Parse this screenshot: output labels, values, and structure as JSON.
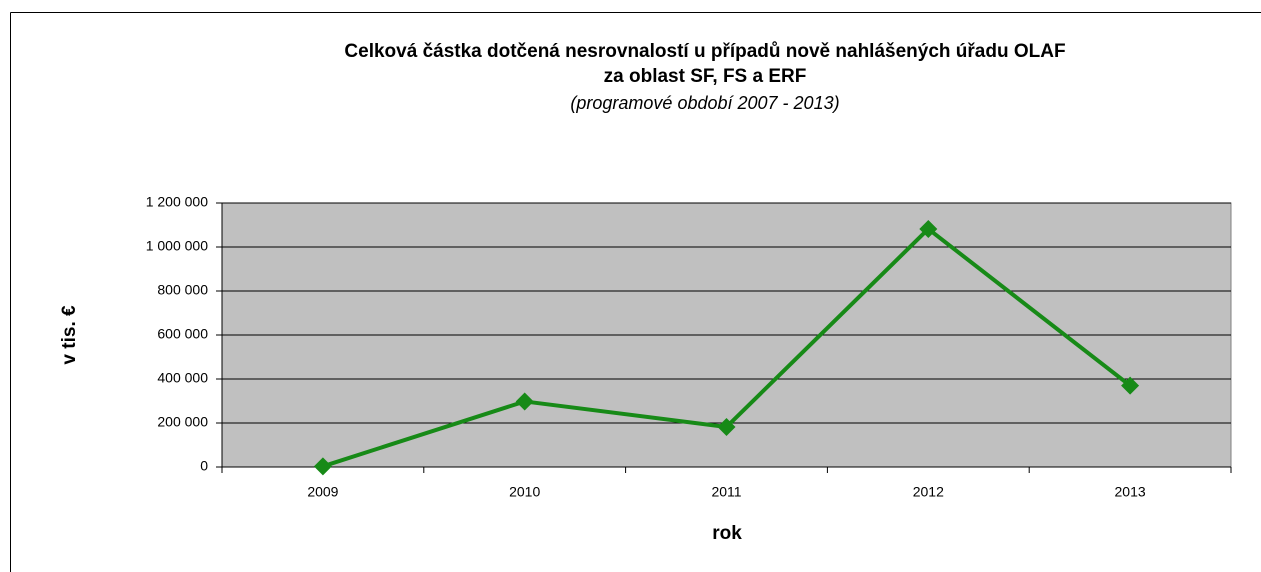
{
  "chart_data": {
    "type": "line",
    "title": [
      "Celková částka dotčená nesrovnalostí u případů nově nahlášených úřadu OLAF",
      "za oblast SF, FS a ERF"
    ],
    "subtitle": "(programové období 2007 - 2013)",
    "x_label": "rok",
    "y_label": "v tis. €",
    "categories": [
      "2009",
      "2010",
      "2011",
      "2012",
      "2013"
    ],
    "values": [
      3000,
      298000,
      182000,
      1082000,
      370000
    ],
    "color": "#178a17",
    "ylim": [
      0,
      1200000
    ],
    "yticks": [
      0,
      {
        "value": 200000,
        "label": "200 000"
      },
      {
        "value": 400000,
        "label": "400 000"
      },
      {
        "value": 600000,
        "label": "600 000"
      },
      {
        "value": 800000,
        "label": "800 000"
      },
      {
        "value": 1000000,
        "label": "1 000 000"
      },
      {
        "value": 1200000,
        "label": "1 200 000"
      }
    ],
    "grid": true
  }
}
